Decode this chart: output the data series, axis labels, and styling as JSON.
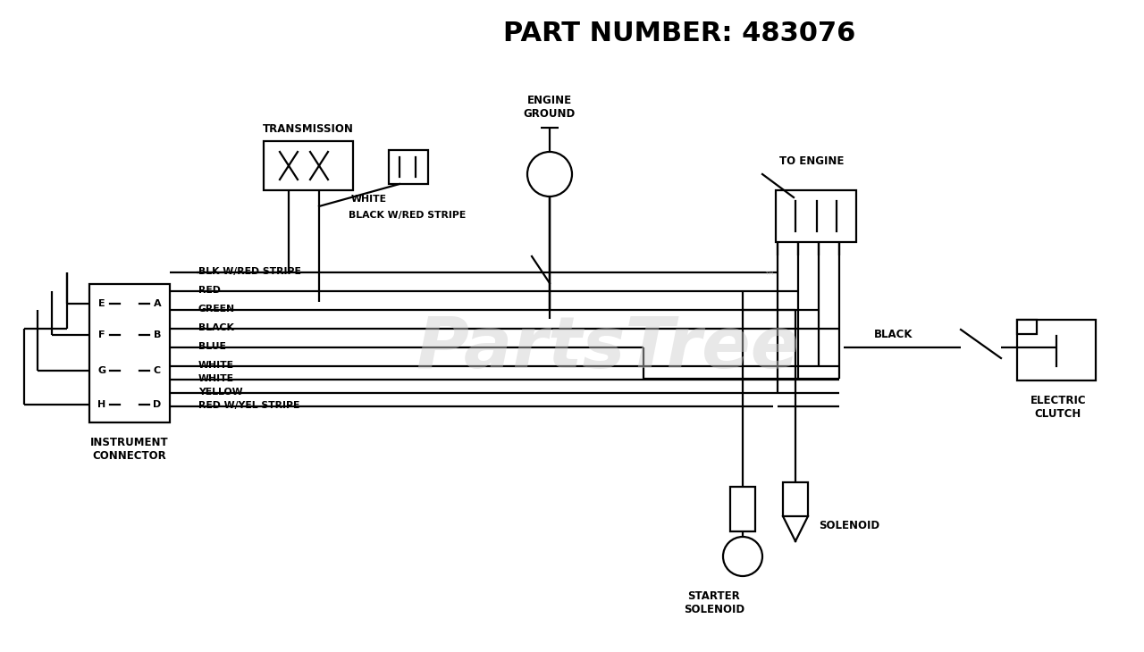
{
  "title": "PART NUMBER: 483076",
  "bg_color": "#ffffff",
  "line_color": "#000000",
  "title_fontsize": 22,
  "watermark": "PartsTrеe",
  "watermark_color": "#cccccc",
  "wire_labels": [
    "BLK W/RED STRIPE",
    "RED",
    "GREEN",
    "BLACK",
    "BLUE",
    "WHITE",
    "WHITE",
    "YELLOW",
    "RED W/YEL STRIPE"
  ],
  "connector_pins_left": [
    "E",
    "F",
    "G",
    "H"
  ],
  "connector_pins_right": [
    "A",
    "B",
    "C",
    "D"
  ],
  "transmission_label": "TRANSMISSION",
  "engine_ground_label": "ENGINE\nGROUND",
  "to_engine_label": "TO ENGINE",
  "electric_clutch_label": "ELECTRIC\nCLUTCH",
  "starter_solenoid_label": "STARTER\nSOLENOID",
  "solenoid_label": "SOLENOID",
  "instrument_connector_label": "INSTRUMENT\nCONNECTOR",
  "white_label": "WHITE",
  "bk_red_stripe_label": "BLACK W/RED STRIPE",
  "black_label": "BLACK",
  "tm_symbol": "™"
}
